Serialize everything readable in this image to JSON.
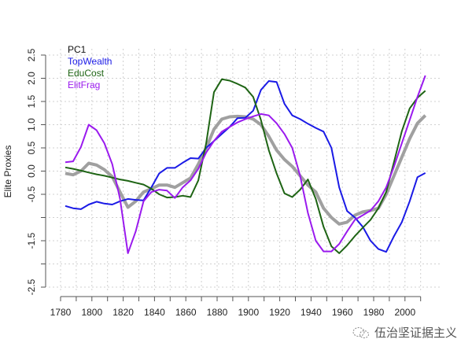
{
  "chart_data": {
    "type": "line",
    "title": "",
    "xlabel": "",
    "ylabel": "Elite Proxies",
    "xlim": [
      1780,
      2010
    ],
    "ylim": [
      -2.5,
      2.5
    ],
    "grid": true,
    "legend_position": "top-left",
    "x_ticks": [
      "1780",
      "1790",
      "1800",
      "1810",
      "1820",
      "1830",
      "1840",
      "1850",
      "1860",
      "1870",
      "1880",
      "1890",
      "1900",
      "1910",
      "1920",
      "1930",
      "1940",
      "1950",
      "1960",
      "1970",
      "1980",
      "1990",
      "2000",
      "2010"
    ],
    "x_tick_labels": [
      "1780",
      "1800",
      "1820",
      "1840",
      "1860",
      "1880",
      "1900",
      "1920",
      "1940",
      "1960",
      "1980",
      "2000"
    ],
    "y_ticks": [
      2.5,
      2.0,
      1.5,
      1.0,
      0.5,
      0.0,
      -0.5,
      -1.0,
      -1.5,
      -2.0,
      -2.5
    ],
    "y_tick_labels": [
      "2.5",
      "2.0",
      "1.5",
      "1.0",
      "0.5",
      "0.0",
      "-0.5",
      "",
      "-1.5",
      "",
      "-2.5"
    ],
    "x": [
      1783,
      1788,
      1793,
      1798,
      1803,
      1808,
      1813,
      1818,
      1823,
      1828,
      1833,
      1838,
      1843,
      1848,
      1853,
      1858,
      1863,
      1868,
      1873,
      1878,
      1883,
      1888,
      1893,
      1898,
      1903,
      1908,
      1913,
      1918,
      1923,
      1928,
      1933,
      1938,
      1943,
      1948,
      1953,
      1958,
      1963,
      1968,
      1973,
      1978,
      1983,
      1988,
      1993,
      1998,
      2003,
      2008,
      2013
    ],
    "series": [
      {
        "name": "PC1",
        "color": "#a0a0a0",
        "values": [
          -0.05,
          -0.08,
          0.0,
          0.17,
          0.13,
          0.03,
          -0.12,
          -0.45,
          -0.78,
          -0.65,
          -0.45,
          -0.38,
          -0.3,
          -0.3,
          -0.35,
          -0.25,
          -0.15,
          0.15,
          0.5,
          0.9,
          1.12,
          1.17,
          1.18,
          1.17,
          1.12,
          1.0,
          0.75,
          0.45,
          0.25,
          0.1,
          -0.1,
          -0.3,
          -0.45,
          -0.8,
          -1.0,
          -1.14,
          -1.1,
          -0.95,
          -0.88,
          -0.85,
          -0.8,
          -0.5,
          -0.1,
          0.3,
          0.7,
          1.03,
          1.2
        ]
      },
      {
        "name": "TopWealth",
        "color": "#1a1ae6",
        "values": [
          -0.75,
          -0.8,
          -0.82,
          -0.72,
          -0.66,
          -0.7,
          -0.72,
          -0.65,
          -0.6,
          -0.62,
          -0.63,
          -0.35,
          -0.05,
          0.07,
          0.07,
          0.18,
          0.28,
          0.27,
          0.5,
          0.65,
          0.8,
          0.95,
          1.14,
          1.15,
          1.3,
          1.75,
          1.94,
          1.92,
          1.45,
          1.2,
          1.12,
          1.02,
          0.93,
          0.85,
          0.5,
          -0.35,
          -0.86,
          -1.0,
          -1.2,
          -1.5,
          -1.68,
          -1.74,
          -1.4,
          -1.1,
          -0.65,
          -0.13,
          -0.04
        ]
      },
      {
        "name": "EduCost",
        "color": "#1e6414",
        "values": [
          0.08,
          0.05,
          0.01,
          -0.03,
          -0.07,
          -0.1,
          -0.14,
          -0.18,
          -0.21,
          -0.25,
          -0.29,
          -0.38,
          -0.5,
          -0.57,
          -0.56,
          -0.53,
          -0.56,
          -0.2,
          0.6,
          1.7,
          1.98,
          1.95,
          1.88,
          1.8,
          1.6,
          1.1,
          0.45,
          -0.05,
          -0.48,
          -0.56,
          -0.4,
          -0.18,
          -0.6,
          -1.2,
          -1.62,
          -1.77,
          -1.6,
          -1.4,
          -1.22,
          -1.05,
          -0.8,
          -0.45,
          0.2,
          0.86,
          1.35,
          1.58,
          1.73
        ]
      },
      {
        "name": "ElitFrag",
        "color": "#9a1aee",
        "values": [
          0.19,
          0.21,
          0.52,
          1.0,
          0.88,
          0.6,
          0.15,
          -0.6,
          -1.77,
          -1.3,
          -0.65,
          -0.45,
          -0.4,
          -0.42,
          -0.58,
          -0.35,
          -0.2,
          0.05,
          0.4,
          0.65,
          0.85,
          0.95,
          1.05,
          1.12,
          1.18,
          1.23,
          1.2,
          1.03,
          0.8,
          0.5,
          -0.1,
          -0.9,
          -1.5,
          -1.73,
          -1.73,
          -1.57,
          -1.3,
          -1.05,
          -0.95,
          -0.85,
          -0.65,
          -0.35,
          0.1,
          0.6,
          1.1,
          1.6,
          2.06
        ]
      }
    ],
    "legend": [
      {
        "label": "PC1",
        "color": "#111111"
      },
      {
        "label": "TopWealth",
        "color": "#1a1ae6"
      },
      {
        "label": "EduCost",
        "color": "#1e6414"
      },
      {
        "label": "ElitFrag",
        "color": "#9a1aee"
      }
    ]
  },
  "watermark": {
    "text": "伍治坚证据主义",
    "icon": "wechat-icon"
  }
}
